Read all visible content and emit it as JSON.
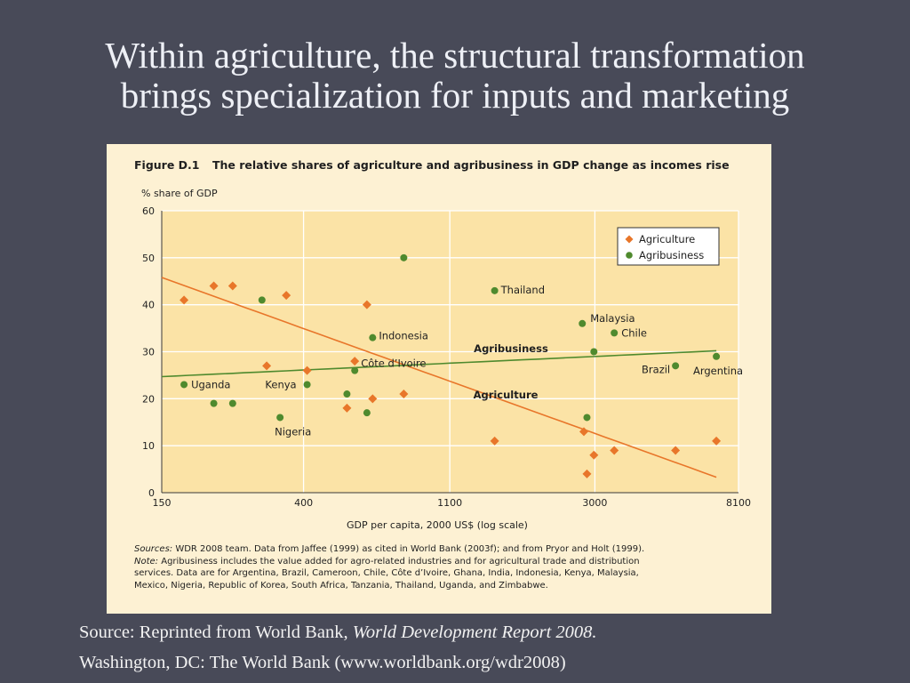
{
  "slide": {
    "title_line1": "Within agriculture, the structural transformation",
    "title_line2": "brings specialization for inputs and marketing",
    "source_prefix": "Source: Reprinted from World Bank, ",
    "source_title": "World Development Report 2008.",
    "source_line2": "Washington, DC: The World Bank (www.worldbank.org/wdr2008)"
  },
  "figure": {
    "number": "Figure D.1",
    "title": "The relative shares of agriculture and agribusiness in GDP change as incomes rise",
    "sources_label": "Sources:",
    "sources_text": " WDR 2008 team. Data from Jaffee (1999) as cited in World Bank (2003f); and from Pryor and Holt (1999).",
    "note_label": "Note:",
    "note_line1": " Agribusiness includes the value added for agro-related industries and for agricultural trade and distribution",
    "note_line2": "services. Data are for Argentina, Brazil, Cameroon, Chile, Côte d’Ivoire, Ghana, India, Indonesia, Kenya, Malaysia,",
    "note_line3": "Mexico, Nigeria, Republic of Korea, South Africa, Tanzania, Thailand, Uganda, and Zimbabwe."
  },
  "colors": {
    "agriculture": "#e8762a",
    "agribusiness": "#4f8a2e",
    "plot_bg": "#fbe3a6",
    "grid": "#ffffff"
  },
  "chart_data": {
    "type": "scatter",
    "title": "The relative shares of agriculture and agribusiness in GDP change as incomes rise",
    "xlabel": "GDP per capita, 2000 US$ (log scale)",
    "ylabel": "% share of GDP",
    "x_scale": "log",
    "xlim": [
      150,
      8100
    ],
    "ylim": [
      0,
      60
    ],
    "x_ticks": [
      150,
      400,
      1100,
      3000,
      8100
    ],
    "x_tick_labels": [
      "150",
      "400",
      "1100",
      "3000",
      "8100"
    ],
    "y_ticks": [
      0,
      10,
      20,
      30,
      40,
      50,
      60
    ],
    "y_tick_labels": [
      "0",
      "10",
      "20",
      "30",
      "40",
      "50",
      "60"
    ],
    "grid": true,
    "legend": {
      "position": "top-right",
      "entries": [
        "Agriculture",
        "Agribusiness"
      ]
    },
    "series": [
      {
        "name": "Agriculture",
        "marker": "diamond",
        "points": [
          {
            "x": 175,
            "y": 41
          },
          {
            "x": 215,
            "y": 44
          },
          {
            "x": 245,
            "y": 44
          },
          {
            "x": 310,
            "y": 27
          },
          {
            "x": 355,
            "y": 42
          },
          {
            "x": 410,
            "y": 26
          },
          {
            "x": 540,
            "y": 18
          },
          {
            "x": 570,
            "y": 28
          },
          {
            "x": 620,
            "y": 40
          },
          {
            "x": 645,
            "y": 20
          },
          {
            "x": 800,
            "y": 21
          },
          {
            "x": 1500,
            "y": 11
          },
          {
            "x": 2780,
            "y": 13
          },
          {
            "x": 2840,
            "y": 4
          },
          {
            "x": 2980,
            "y": 8
          },
          {
            "x": 3430,
            "y": 9
          },
          {
            "x": 5240,
            "y": 9
          },
          {
            "x": 6950,
            "y": 11
          }
        ],
        "trend": {
          "label": "Agriculture",
          "x": [
            150,
            6950
          ],
          "y": [
            45.8,
            3.3
          ]
        }
      },
      {
        "name": "Agribusiness",
        "marker": "circle",
        "points": [
          {
            "x": 175,
            "y": 23,
            "label": "Uganda"
          },
          {
            "x": 215,
            "y": 19
          },
          {
            "x": 245,
            "y": 19
          },
          {
            "x": 300,
            "y": 41
          },
          {
            "x": 340,
            "y": 16,
            "label": "Nigeria"
          },
          {
            "x": 410,
            "y": 23,
            "label": "Kenya"
          },
          {
            "x": 540,
            "y": 21
          },
          {
            "x": 570,
            "y": 26,
            "label": "Côte d’Ivoire"
          },
          {
            "x": 620,
            "y": 17
          },
          {
            "x": 645,
            "y": 33,
            "label": "Indonesia"
          },
          {
            "x": 800,
            "y": 50
          },
          {
            "x": 1500,
            "y": 43,
            "label": "Thailand"
          },
          {
            "x": 2750,
            "y": 36,
            "label": "Malaysia"
          },
          {
            "x": 2840,
            "y": 16
          },
          {
            "x": 2980,
            "y": 30
          },
          {
            "x": 3430,
            "y": 34,
            "label": "Chile"
          },
          {
            "x": 5240,
            "y": 27,
            "label": "Brazil"
          },
          {
            "x": 6950,
            "y": 29,
            "label": "Argentina"
          }
        ],
        "trend": {
          "label": "Agribusiness",
          "x": [
            150,
            6950
          ],
          "y": [
            24.7,
            30.2
          ]
        }
      }
    ]
  }
}
